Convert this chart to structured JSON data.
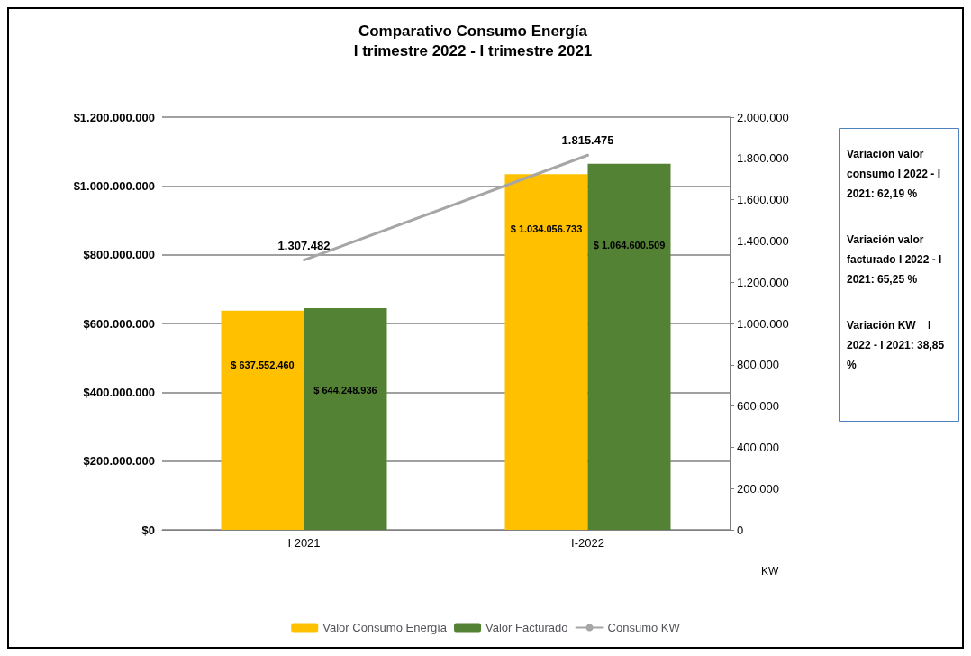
{
  "chart_data": {
    "type": "bar",
    "title": "Comparativo Consumo Energía\nI trimestre 2022 - I trimestre 2021",
    "categories": [
      "I 2021",
      "I-2022"
    ],
    "series": [
      {
        "name": "Valor Consumo Energía",
        "color": "#ffc000",
        "values": [
          637552460,
          1034056733
        ],
        "value_labels": [
          "$ 637.552.460",
          "$ 1.034.056.733"
        ]
      },
      {
        "name": "Valor Facturado",
        "color": "#548235",
        "values": [
          644248936,
          1064600509
        ],
        "value_labels": [
          "$ 644.248.936",
          "$ 1.064.600.509"
        ]
      },
      {
        "name": "Consumo KW",
        "type": "line",
        "axis": "y2",
        "color": "#a6a6a6",
        "values": [
          1307482,
          1815475
        ],
        "value_labels": [
          "1.307.482",
          "1.815.475"
        ]
      }
    ],
    "ylim": [
      0,
      1200000000
    ],
    "yticks": [
      {
        "value": 0,
        "label": "$0"
      },
      {
        "value": 200000000,
        "label": "$200.000.000"
      },
      {
        "value": 400000000,
        "label": "$400.000.000"
      },
      {
        "value": 600000000,
        "label": "$600.000.000"
      },
      {
        "value": 800000000,
        "label": "$800.000.000"
      },
      {
        "value": 1000000000,
        "label": "$1.000.000.000"
      },
      {
        "value": 1200000000,
        "label": "$1.200.000.000"
      }
    ],
    "y2lim": [
      0,
      2000000
    ],
    "y2ticks": [
      0,
      {
        "value": 200000,
        "label": "200.000"
      },
      {
        "value": 400000,
        "label": "400.000"
      },
      {
        "value": 600000,
        "label": "600.000"
      },
      {
        "value": 800000,
        "label": "800.000"
      },
      {
        "value": 1000000,
        "label": "1.000.000"
      },
      {
        "value": 1200000,
        "label": "1.200.000"
      },
      {
        "value": 1400000,
        "label": "1.400.000"
      },
      {
        "value": 1600000,
        "label": "1.600.000"
      },
      {
        "value": 1800000,
        "label": "1.800.000"
      },
      {
        "value": 2000000,
        "label": "2.000.000"
      }
    ],
    "y2label": "KW",
    "grid": "y",
    "legend": "bottom",
    "marker": "none",
    "line_style": "solid",
    "annotations": [
      "Variación valor consumo I 2022 - I 2021: 62,19 %",
      "Variación valor facturado I 2022 - I 2021: 65,25 %",
      "Variación KW    I 2022 - I 2021: 38,85 %"
    ]
  }
}
